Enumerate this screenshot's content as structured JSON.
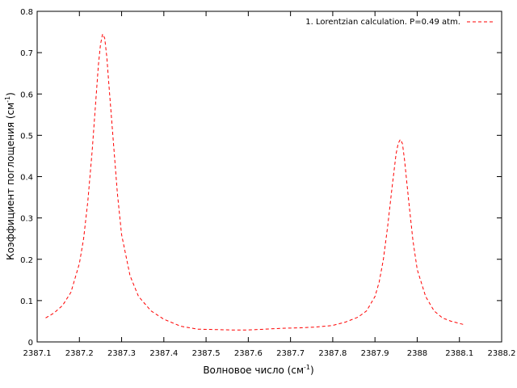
{
  "chart_data": {
    "type": "line",
    "title": "",
    "xlabel": "Волновое число (см",
    "xlabel_sup": "-1",
    "xlabel_end": ")",
    "ylabel": "Коэффициент поглощения (см",
    "ylabel_sup": "-1",
    "ylabel_end": ")",
    "xlim": [
      2387.1,
      2388.2
    ],
    "ylim": [
      0,
      0.8
    ],
    "x_ticks": [
      2387.1,
      2387.2,
      2387.3,
      2387.4,
      2387.5,
      2387.6,
      2387.7,
      2387.8,
      2387.9,
      2388.0,
      2388.1,
      2388.2
    ],
    "x_tick_labels": [
      "2387.1",
      "2387.2",
      "2387.3",
      "2387.4",
      "2387.5",
      "2387.6",
      "2387.7",
      "2387.8",
      "2387.9",
      "2388",
      "2388.1",
      "2388.2"
    ],
    "y_ticks": [
      0,
      0.1,
      0.2,
      0.3,
      0.4,
      0.5,
      0.6,
      0.7,
      0.8
    ],
    "y_tick_labels": [
      "0",
      "0.1",
      "0.2",
      "0.3",
      "0.4",
      "0.5",
      "0.6",
      "0.7",
      "0.8"
    ],
    "grid": false,
    "legend_position": "top-right",
    "series": [
      {
        "name": "1. Lorentzian calculation. P=0.49 atm.",
        "color": "#ff0000",
        "dash": "dashed",
        "x": [
          2387.12,
          2387.14,
          2387.16,
          2387.18,
          2387.2,
          2387.21,
          2387.22,
          2387.23,
          2387.24,
          2387.245,
          2387.25,
          2387.255,
          2387.26,
          2387.265,
          2387.27,
          2387.28,
          2387.29,
          2387.3,
          2387.32,
          2387.34,
          2387.37,
          2387.4,
          2387.44,
          2387.48,
          2387.52,
          2387.56,
          2387.6,
          2387.64,
          2387.68,
          2387.72,
          2387.76,
          2387.8,
          2387.83,
          2387.86,
          2387.88,
          2387.9,
          2387.91,
          2387.92,
          2387.93,
          2387.94,
          2387.95,
          2387.955,
          2387.96,
          2387.965,
          2387.97,
          2387.98,
          2387.99,
          2388.0,
          2388.02,
          2388.04,
          2388.06,
          2388.08,
          2388.11
        ],
        "y": [
          0.058,
          0.07,
          0.088,
          0.12,
          0.19,
          0.25,
          0.34,
          0.46,
          0.6,
          0.67,
          0.72,
          0.745,
          0.735,
          0.69,
          0.62,
          0.49,
          0.36,
          0.26,
          0.16,
          0.11,
          0.075,
          0.055,
          0.038,
          0.031,
          0.03,
          0.029,
          0.029,
          0.031,
          0.033,
          0.034,
          0.036,
          0.04,
          0.048,
          0.06,
          0.075,
          0.11,
          0.145,
          0.2,
          0.28,
          0.37,
          0.455,
          0.48,
          0.49,
          0.48,
          0.44,
          0.34,
          0.245,
          0.175,
          0.11,
          0.075,
          0.058,
          0.05,
          0.042
        ]
      }
    ]
  }
}
